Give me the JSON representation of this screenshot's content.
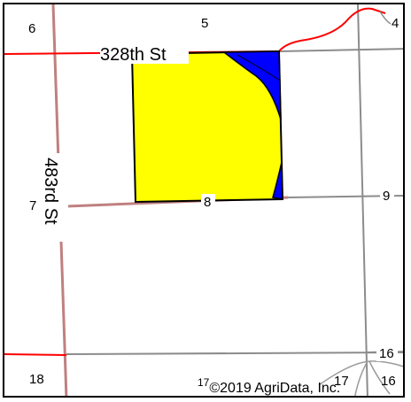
{
  "map": {
    "colors": {
      "field_fill": "#ffff00",
      "field_accent_fill": "#0000ff",
      "field_stroke": "#000000",
      "road_primary": "#ff0000",
      "road_secondary": "#c08080",
      "section_line": "#8c8c8c",
      "background": "#ffffff"
    },
    "roads": {
      "east_west": "328th St",
      "north_south": "483rd St"
    },
    "sections": {
      "s4": "4",
      "s5": "5",
      "s6": "6",
      "s7": "7",
      "s8": "8",
      "s9": "9",
      "s16a": "16",
      "s16b": "16",
      "s17a": "17",
      "s17b": "17",
      "s18": "18"
    },
    "copyright": "©2019 AgriData, Inc."
  }
}
